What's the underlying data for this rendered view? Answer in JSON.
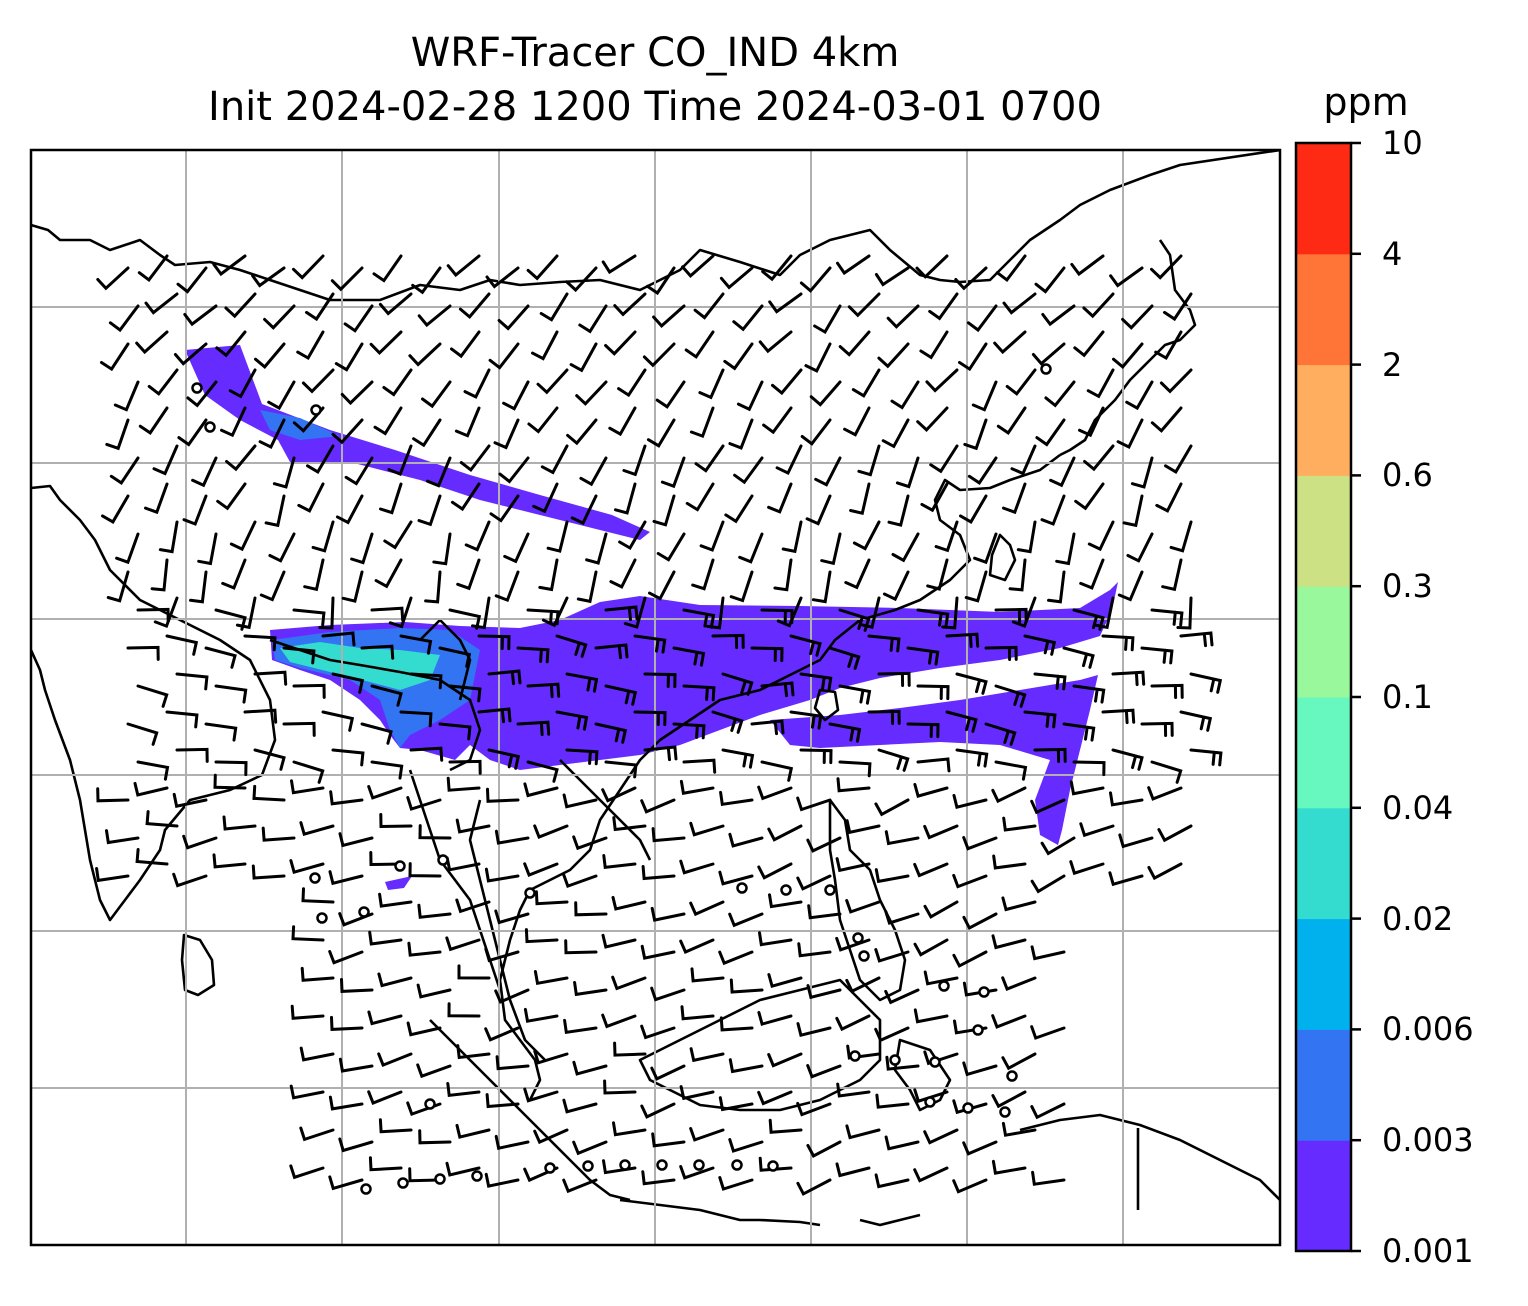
{
  "title": {
    "line1": "WRF-Tracer CO_IND 4km",
    "line2": "Init 2024-02-28 1200 Time 2024-03-01 0700"
  },
  "colorbar": {
    "unit": "ppm",
    "levels": [
      "0.001",
      "0.003",
      "0.006",
      "0.02",
      "0.04",
      "0.1",
      "0.3",
      "0.6",
      "2",
      "4",
      "10"
    ],
    "colors": [
      "#652bff",
      "#3374f2",
      "#00b1ee",
      "#33dccf",
      "#66f8bf",
      "#99f89b",
      "#cce183",
      "#ffae5f",
      "#ff7538",
      "#ff2a13"
    ]
  },
  "map": {
    "gridline_color": "#b0b0b0",
    "plume_colors": {
      "low": "#652bff",
      "mid": "#3374f2",
      "high": "#33dccf"
    }
  }
}
